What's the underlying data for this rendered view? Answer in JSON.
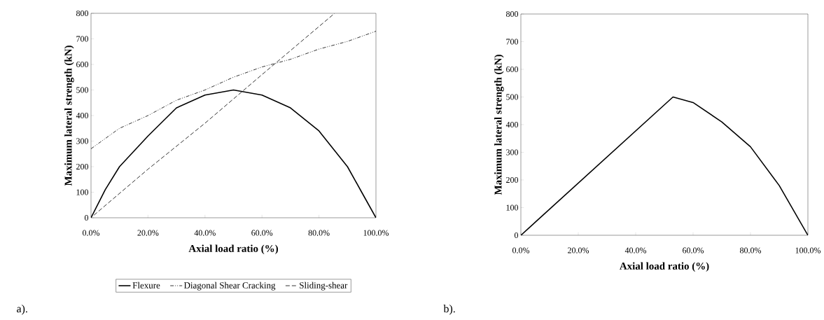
{
  "chart_data": [
    {
      "type": "line",
      "xlabel": "Axial load ratio (%)",
      "ylabel": "Maximum lateral strength (kN)",
      "xlim": [
        0,
        1
      ],
      "ylim": [
        0,
        800
      ],
      "xticks": [
        {
          "value": 0,
          "label": "0.0%"
        },
        {
          "value": 0.2,
          "label": "20.0%"
        },
        {
          "value": 0.4,
          "label": "40.0%"
        },
        {
          "value": 0.6,
          "label": "60.0%"
        },
        {
          "value": 0.8,
          "label": "80.0%"
        },
        {
          "value": 1,
          "label": "100.0%"
        }
      ],
      "yticks": [
        0,
        100,
        200,
        300,
        400,
        500,
        600,
        700,
        800
      ],
      "grid": false,
      "legend": "bottom",
      "annotations": [
        "a)."
      ],
      "series": [
        {
          "name": "Flexure",
          "color": "#000000",
          "line_style": "solid",
          "x": [
            0,
            0.05,
            0.1,
            0.2,
            0.3,
            0.4,
            0.5,
            0.6,
            0.7,
            0.8,
            0.9,
            0.95,
            1
          ],
          "values": [
            0,
            110,
            200,
            320,
            430,
            480,
            500,
            480,
            430,
            340,
            200,
            100,
            0
          ]
        },
        {
          "name": "Diagonal Shear Cracking",
          "color": "#000000",
          "line_style": "dashdot",
          "x": [
            0,
            0.1,
            0.2,
            0.3,
            0.4,
            0.5,
            0.6,
            0.7,
            0.8,
            0.9,
            1
          ],
          "values": [
            270,
            350,
            400,
            460,
            500,
            550,
            590,
            620,
            660,
            690,
            730
          ]
        },
        {
          "name": "Sliding-shear",
          "color": "#000000",
          "line_style": "dashed",
          "x": [
            0.01,
            0.2,
            0.4,
            0.6,
            0.855
          ],
          "values": [
            10,
            190,
            370,
            560,
            800
          ]
        }
      ]
    },
    {
      "type": "line",
      "xlabel": "Axial load ratio (%)",
      "ylabel": "Maximum lateral strength (kN)",
      "xlim": [
        0,
        1
      ],
      "ylim": [
        0,
        800
      ],
      "xticks": [
        {
          "value": 0,
          "label": "0.0%"
        },
        {
          "value": 0.2,
          "label": "20.0%"
        },
        {
          "value": 0.4,
          "label": "40.0%"
        },
        {
          "value": 0.6,
          "label": "60.0%"
        },
        {
          "value": 0.8,
          "label": "80.0%"
        },
        {
          "value": 1,
          "label": "100.0%"
        }
      ],
      "yticks": [
        0,
        100,
        200,
        300,
        400,
        500,
        600,
        700,
        800
      ],
      "grid": false,
      "legend": false,
      "annotations": [
        "b)."
      ],
      "series": [
        {
          "color": "#000000",
          "line_style": "solid",
          "x": [
            0,
            0.53,
            0.6,
            0.7,
            0.8,
            0.9,
            1
          ],
          "values": [
            0,
            500,
            480,
            410,
            320,
            180,
            0
          ]
        }
      ]
    }
  ]
}
